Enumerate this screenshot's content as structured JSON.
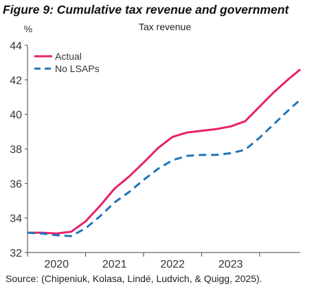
{
  "figure": {
    "title": "Figure 9: Cumulative tax revenue and government",
    "source": "Source: (Chipeniuk, Kolasa, Lindé, Ludvich, & Quigg, 2025)."
  },
  "chart_data": {
    "type": "line",
    "title": "Tax revenue",
    "ylabel": "%",
    "xlabel": "",
    "ylim": [
      32,
      44
    ],
    "yticks": [
      32,
      34,
      36,
      38,
      40,
      42,
      44
    ],
    "xlim": [
      2019.5,
      2024.2
    ],
    "xticks": [
      2020,
      2021,
      2022,
      2023
    ],
    "grid": false,
    "legend_position": "top-left",
    "x": [
      2019.5,
      2019.75,
      2020.0,
      2020.25,
      2020.5,
      2020.75,
      2021.0,
      2021.25,
      2021.5,
      2021.75,
      2022.0,
      2022.25,
      2022.5,
      2022.75,
      2023.0,
      2023.25,
      2023.5,
      2023.75,
      2024.0,
      2024.2
    ],
    "series": [
      {
        "name": "Actual",
        "color": "#e8206a",
        "dash": false,
        "values": [
          33.15,
          33.15,
          33.1,
          33.2,
          33.8,
          34.7,
          35.7,
          36.4,
          37.2,
          38.05,
          38.7,
          38.95,
          39.05,
          39.15,
          39.3,
          39.6,
          40.45,
          41.3,
          42.05,
          42.6
        ]
      },
      {
        "name": "No LSAPs",
        "color": "#1f74b8",
        "dash": true,
        "values": [
          33.15,
          33.1,
          33.0,
          32.95,
          33.4,
          34.1,
          34.9,
          35.5,
          36.2,
          36.85,
          37.35,
          37.6,
          37.65,
          37.65,
          37.75,
          37.95,
          38.65,
          39.45,
          40.25,
          40.85
        ]
      }
    ]
  }
}
